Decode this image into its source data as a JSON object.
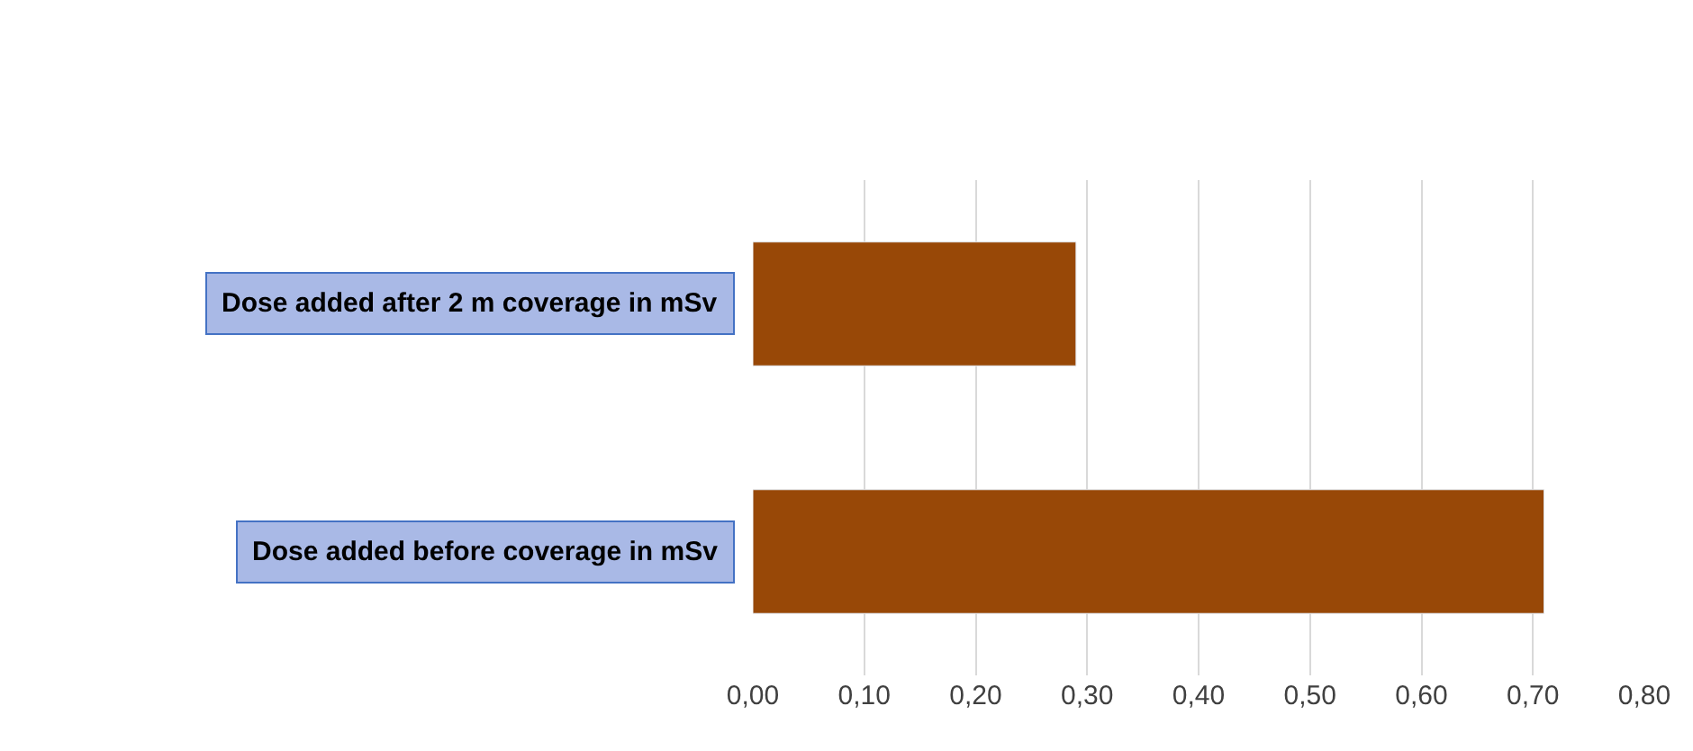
{
  "chart_data": {
    "type": "bar",
    "orientation": "horizontal",
    "categories": [
      "Dose added after 2 m coverage in mSv",
      "Dose added before coverage in mSv"
    ],
    "values": [
      0.29,
      0.71
    ],
    "color": "#984807",
    "xlim": [
      0,
      0.8
    ],
    "xticks": [
      {
        "value": 0,
        "label": "0,00"
      },
      {
        "value": 0.1,
        "label": "0,10"
      },
      {
        "value": 0.2,
        "label": "0,20"
      },
      {
        "value": 0.3,
        "label": "0,30"
      },
      {
        "value": 0.4,
        "label": "0,40"
      },
      {
        "value": 0.5,
        "label": "0,50"
      },
      {
        "value": 0.6,
        "label": "0,60"
      },
      {
        "value": 0.7,
        "label": "0,70"
      },
      {
        "value": 0.8,
        "label": "0,80"
      }
    ],
    "grid": "x"
  }
}
